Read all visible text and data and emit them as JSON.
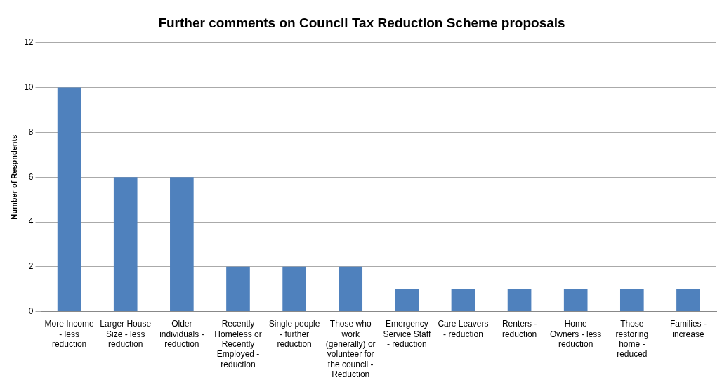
{
  "chart_data": {
    "type": "bar",
    "title": "Further comments on Council Tax Reduction Scheme proposals",
    "ylabel": "Number of Respndents",
    "categories": [
      "More Income - less reduction",
      "Larger House Size - less reduction",
      "Older individuals - reduction",
      "Recently Homeless or Recently Employed - reduction",
      "Single people - further reduction",
      "Those who work (generally) or volunteer for the council - Reduction",
      "Emergency Service Staff - reduction",
      "Care Leavers - reduction",
      "Renters - reduction",
      "Home Owners - less reduction",
      "Those restoring home - reduced",
      "Families - increase"
    ],
    "values": [
      10,
      6,
      6,
      2,
      2,
      2,
      1,
      1,
      1,
      1,
      1,
      1
    ],
    "color": "#4f81bd",
    "ylim": [
      0,
      12
    ],
    "yticks": [
      0,
      2,
      4,
      6,
      8,
      10,
      12
    ],
    "grid": "y"
  }
}
